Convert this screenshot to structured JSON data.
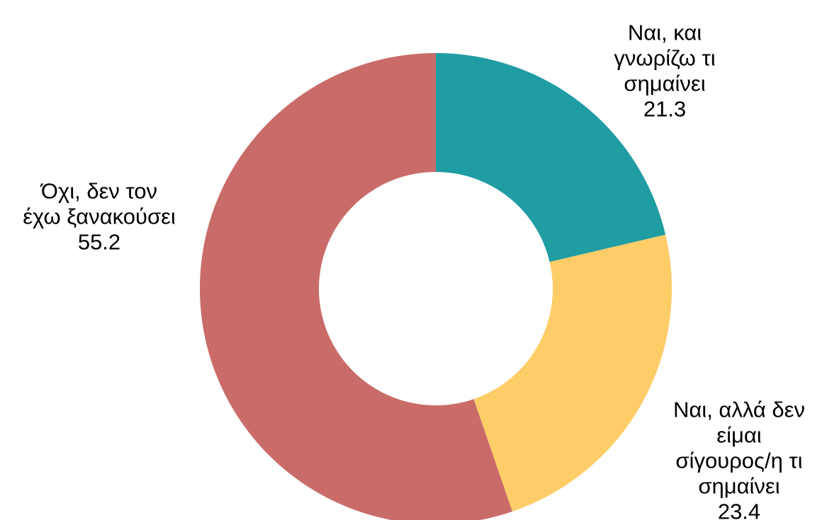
{
  "chart_data": {
    "type": "pie",
    "donut": true,
    "title": "",
    "start_angle_deg": 0,
    "direction": "clockwise",
    "slices": [
      {
        "label_lines": [
          "Ναι, και",
          "γνωρίζω τι",
          "σημαίνει"
        ],
        "value": 21.3,
        "value_label": "21.3",
        "color": "#209CA3"
      },
      {
        "label_lines": [
          "Ναι, αλλά δεν",
          "είμαι",
          "σίγουρος/η τι",
          "σημαίνει"
        ],
        "value": 23.4,
        "value_label": "23.4",
        "color": "#FECD68"
      },
      {
        "label_lines": [
          "Όχι, δεν τον",
          "έχω ξανακούσει"
        ],
        "value": 55.2,
        "value_label": "55.2",
        "color": "#C96C69"
      }
    ],
    "legend": "none",
    "background": "#FFFFFF"
  }
}
